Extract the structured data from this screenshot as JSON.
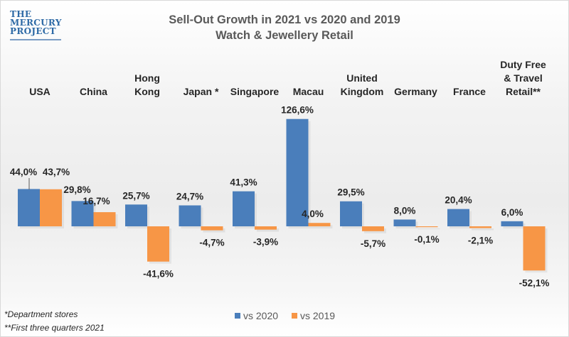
{
  "logo": {
    "lines": [
      "THE",
      "MERCURY",
      "PROJECT"
    ]
  },
  "chart_data": {
    "type": "bar",
    "title": "Sell-Out Growth in 2021 vs 2020 and 2019",
    "subtitle": "Watch & Jewellery Retail",
    "xlabel": "",
    "ylabel": "",
    "grid": false,
    "legend_position": "bottom",
    "categories": [
      [
        "USA"
      ],
      [
        "China"
      ],
      [
        "Hong",
        "Kong"
      ],
      [
        "Japan *"
      ],
      [
        "Singapore"
      ],
      [
        "Macau"
      ],
      [
        "United",
        "Kingdom"
      ],
      [
        "Germany"
      ],
      [
        "France"
      ],
      [
        "Duty Free",
        "& Travel",
        "Retail**"
      ]
    ],
    "series": [
      {
        "name": "vs 2020",
        "color": "#4a7ebb",
        "values": [
          44.0,
          29.8,
          25.7,
          24.7,
          41.3,
          126.6,
          29.5,
          8.0,
          20.4,
          6.0
        ],
        "labels": [
          "44,0%",
          "29,8%",
          "25,7%",
          "24,7%",
          "41,3%",
          "126,6%",
          "29,5%",
          "8,0%",
          "20,4%",
          "6,0%"
        ]
      },
      {
        "name": "vs 2019",
        "color": "#f79646",
        "values": [
          43.7,
          16.7,
          -41.6,
          -4.7,
          -3.9,
          4.0,
          -5.7,
          -0.1,
          -2.1,
          -52.1
        ],
        "labels": [
          "43,7%",
          "16,7%",
          "-41,6%",
          "-4,7%",
          "-3,9%",
          "4,0%",
          "-5,7%",
          "-0,1%",
          "-2,1%",
          "-52,1%"
        ]
      }
    ],
    "ylim": [
      -55,
      130
    ]
  },
  "footnotes": [
    "*Department stores",
    "**First three quarters 2021"
  ],
  "legend": [
    {
      "label": "vs 2020",
      "color": "#4a7ebb"
    },
    {
      "label": "vs 2019",
      "color": "#f79646"
    }
  ]
}
